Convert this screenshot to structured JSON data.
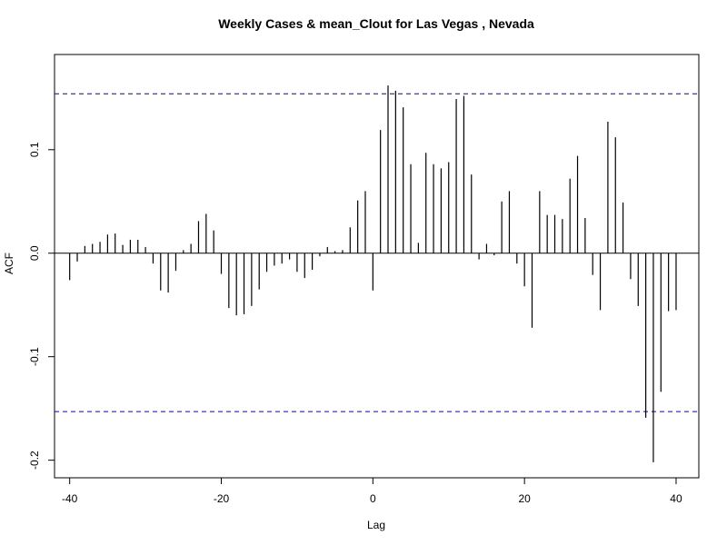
{
  "chart_data": {
    "type": "bar",
    "title": "Weekly Cases & mean_Clout for Las Vegas , Nevada",
    "xlabel": "Lag",
    "ylabel": "ACF",
    "xlim": [
      -42,
      43
    ],
    "ylim": [
      -0.217,
      0.192
    ],
    "xticks": [
      -40,
      -20,
      0,
      20,
      40
    ],
    "xtick_labels": [
      "-40",
      "-20",
      "0",
      "20",
      "40"
    ],
    "yticks": [
      -0.2,
      -0.1,
      0.0,
      0.1
    ],
    "ytick_labels": [
      "-0.2",
      "-0.1",
      "0.0",
      "0.1"
    ],
    "confidence_bounds": [
      0.154,
      -0.153
    ],
    "confidence_color": "#0000cc",
    "lags": [
      -40,
      -39,
      -38,
      -37,
      -36,
      -35,
      -34,
      -33,
      -32,
      -31,
      -30,
      -29,
      -28,
      -27,
      -26,
      -25,
      -24,
      -23,
      -22,
      -21,
      -20,
      -19,
      -18,
      -17,
      -16,
      -15,
      -14,
      -13,
      -12,
      -11,
      -10,
      -9,
      -8,
      -7,
      -6,
      -5,
      -4,
      -3,
      -2,
      -1,
      0,
      1,
      2,
      3,
      4,
      5,
      6,
      7,
      8,
      9,
      10,
      11,
      12,
      13,
      14,
      15,
      16,
      17,
      18,
      19,
      20,
      21,
      22,
      23,
      24,
      25,
      26,
      27,
      28,
      29,
      30,
      31,
      32,
      33,
      34,
      35,
      36,
      37,
      38,
      39,
      40
    ],
    "values": [
      -0.026,
      -0.008,
      0.007,
      0.009,
      0.011,
      0.018,
      0.019,
      0.008,
      0.013,
      0.013,
      0.006,
      -0.01,
      -0.036,
      -0.038,
      -0.017,
      0.003,
      0.009,
      0.031,
      0.038,
      0.022,
      -0.02,
      -0.053,
      -0.06,
      -0.059,
      -0.051,
      -0.035,
      -0.018,
      -0.012,
      -0.01,
      -0.006,
      -0.018,
      -0.024,
      -0.016,
      -0.003,
      0.006,
      0.002,
      0.003,
      0.025,
      0.051,
      0.06,
      -0.036,
      0.119,
      0.162,
      0.157,
      0.141,
      0.086,
      0.01,
      0.097,
      0.086,
      0.082,
      0.088,
      0.149,
      0.152,
      0.076,
      -0.006,
      0.009,
      -0.002,
      0.05,
      0.06,
      -0.01,
      -0.032,
      -0.072,
      0.06,
      0.037,
      0.037,
      0.033,
      0.072,
      0.094,
      0.034,
      -0.021,
      -0.055,
      0.127,
      0.112,
      0.049,
      -0.025,
      -0.051,
      -0.159,
      -0.202,
      -0.134,
      -0.056,
      -0.055
    ],
    "grid": false,
    "legend": "none"
  }
}
